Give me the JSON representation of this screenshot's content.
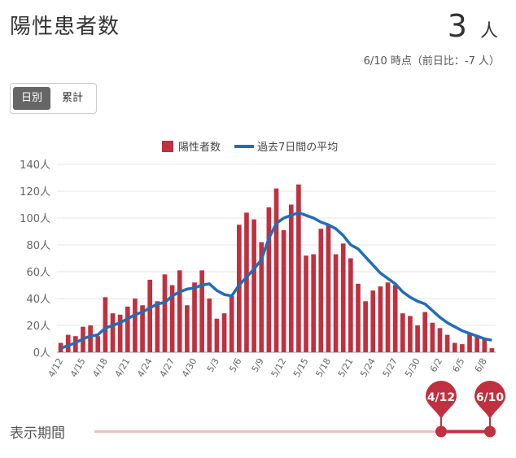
{
  "header": {
    "title": "陽性患者数",
    "count": "3",
    "unit": "人",
    "subtitle": "6/10 時点（前日比：-7 人）"
  },
  "toggle": {
    "daily_label": "日別",
    "cumulative_label": "累計"
  },
  "legend": {
    "bar_label": "陽性者数",
    "line_label": "過去7日間の平均"
  },
  "colors": {
    "bar": "#c0303f",
    "line": "#1f6fb8",
    "range_track": "#e8c0c4",
    "range_active": "#c0303f",
    "grid": "#e4e4e4"
  },
  "chart_data": {
    "type": "bar",
    "y_unit": "人",
    "ylim": [
      0,
      140
    ],
    "yticks": [
      "0人",
      "20人",
      "40人",
      "60人",
      "80人",
      "100人",
      "120人",
      "140人"
    ],
    "x_tick_labels": [
      "4/12",
      "4/15",
      "4/18",
      "4/21",
      "4/24",
      "4/27",
      "4/30",
      "5/3",
      "5/6",
      "5/9",
      "5/12",
      "5/15",
      "5/18",
      "5/21",
      "5/24",
      "5/27",
      "5/30",
      "6/2",
      "6/5",
      "6/8"
    ],
    "series": [
      {
        "name": "陽性者数",
        "type": "bar",
        "values": [
          7,
          13,
          12,
          19,
          20,
          12,
          41,
          29,
          28,
          34,
          40,
          35,
          54,
          38,
          58,
          50,
          61,
          35,
          52,
          61,
          40,
          25,
          29,
          42,
          95,
          104,
          99,
          82,
          108,
          122,
          91,
          110,
          125,
          72,
          73,
          92,
          95,
          73,
          81,
          70,
          51,
          38,
          46,
          49,
          52,
          50,
          29,
          27,
          20,
          30,
          22,
          18,
          13,
          7,
          6,
          14,
          12,
          10,
          3
        ]
      },
      {
        "name": "過去7日間の平均",
        "type": "line",
        "values": [
          3,
          5,
          7,
          10,
          12,
          13,
          18,
          20,
          22,
          25,
          28,
          30,
          33,
          36,
          37,
          42,
          45,
          47,
          48,
          50,
          51,
          46,
          43,
          42,
          50,
          56,
          62,
          69,
          85,
          96,
          100,
          102,
          104,
          102,
          100,
          97,
          95,
          92,
          87,
          80,
          77,
          71,
          65,
          59,
          55,
          51,
          45,
          41,
          38,
          36,
          31,
          26,
          22,
          19,
          16,
          14,
          12,
          10,
          9
        ]
      }
    ],
    "grid": true,
    "legend_position": "top-center"
  },
  "range": {
    "label": "表示期間",
    "start": "4/12",
    "end": "6/10",
    "start_fraction": 0.0,
    "end_fraction": 1.0
  }
}
